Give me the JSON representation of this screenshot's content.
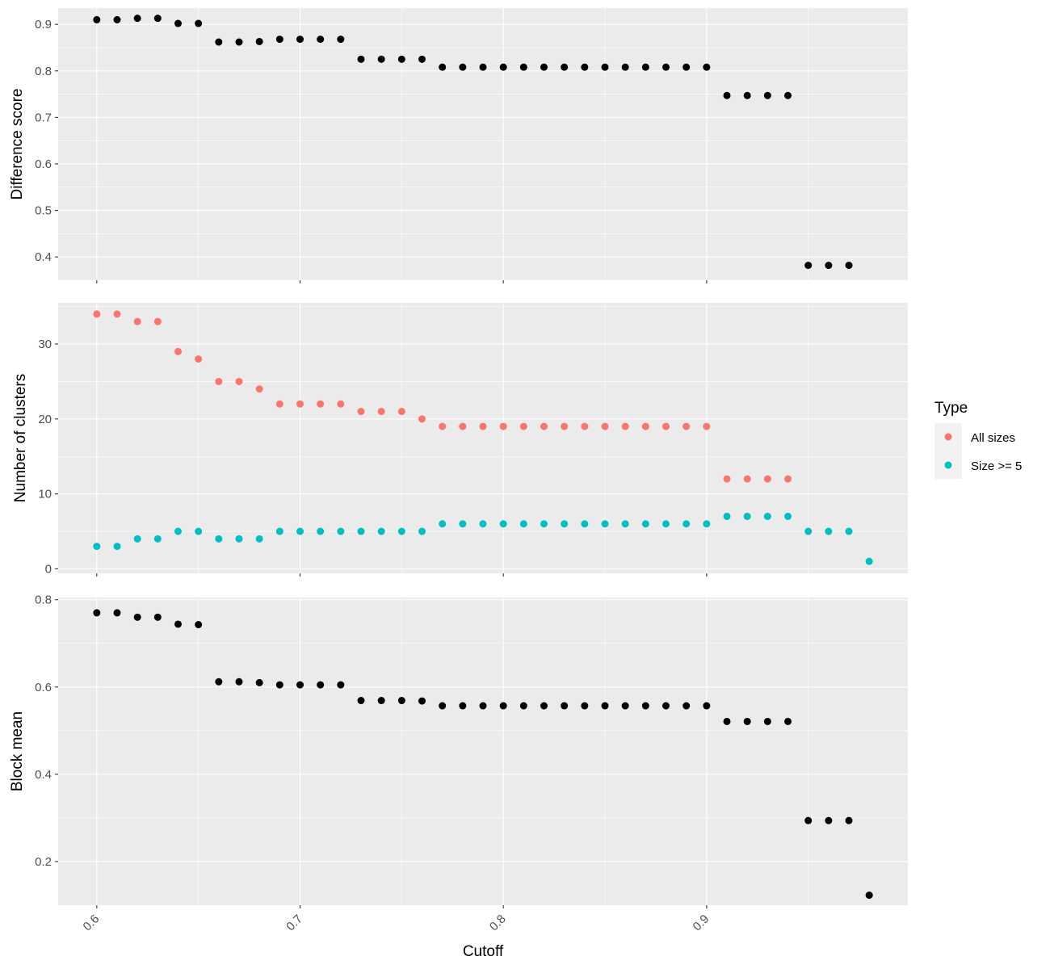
{
  "chart_data": [
    {
      "type": "scatter",
      "panel": "top",
      "ylabel": "Difference score",
      "ylim": [
        0.35,
        0.935
      ],
      "y_ticks": [
        "0.4",
        "0.5",
        "0.6",
        "0.7",
        "0.8",
        "0.9"
      ],
      "series": [
        {
          "color": "#000000",
          "x": [
            0.6,
            0.61,
            0.62,
            0.63,
            0.64,
            0.65,
            0.66,
            0.67,
            0.68,
            0.69,
            0.7,
            0.71,
            0.72,
            0.73,
            0.74,
            0.75,
            0.76,
            0.77,
            0.78,
            0.79,
            0.8,
            0.81,
            0.82,
            0.83,
            0.84,
            0.85,
            0.86,
            0.87,
            0.88,
            0.89,
            0.9,
            0.91,
            0.92,
            0.93,
            0.94,
            0.95,
            0.96,
            0.97
          ],
          "y": [
            0.91,
            0.91,
            0.913,
            0.913,
            0.902,
            0.902,
            0.862,
            0.862,
            0.863,
            0.868,
            0.868,
            0.868,
            0.868,
            0.825,
            0.825,
            0.825,
            0.825,
            0.808,
            0.808,
            0.808,
            0.808,
            0.808,
            0.808,
            0.808,
            0.808,
            0.808,
            0.808,
            0.808,
            0.808,
            0.808,
            0.808,
            0.747,
            0.747,
            0.747,
            0.747,
            0.382,
            0.382,
            0.382
          ]
        }
      ]
    },
    {
      "type": "scatter",
      "panel": "middle",
      "ylabel": "Number of clusters",
      "ylim": [
        -0.6,
        35.5
      ],
      "y_ticks": [
        "0",
        "10",
        "20",
        "30"
      ],
      "series": [
        {
          "name": "All sizes",
          "color": "#F8766D",
          "x": [
            0.6,
            0.61,
            0.62,
            0.63,
            0.64,
            0.65,
            0.66,
            0.67,
            0.68,
            0.69,
            0.7,
            0.71,
            0.72,
            0.73,
            0.74,
            0.75,
            0.76,
            0.77,
            0.78,
            0.79,
            0.8,
            0.81,
            0.82,
            0.83,
            0.84,
            0.85,
            0.86,
            0.87,
            0.88,
            0.89,
            0.9,
            0.91,
            0.92,
            0.93,
            0.94
          ],
          "y": [
            34,
            34,
            33,
            33,
            29,
            28,
            25,
            25,
            24,
            22,
            22,
            22,
            22,
            21,
            21,
            21,
            20,
            19,
            19,
            19,
            19,
            19,
            19,
            19,
            19,
            19,
            19,
            19,
            19,
            19,
            19,
            12,
            12,
            12,
            12
          ]
        },
        {
          "name": "Size >= 5",
          "color": "#00BFC4",
          "x": [
            0.6,
            0.61,
            0.62,
            0.63,
            0.64,
            0.65,
            0.66,
            0.67,
            0.68,
            0.69,
            0.7,
            0.71,
            0.72,
            0.73,
            0.74,
            0.75,
            0.76,
            0.77,
            0.78,
            0.79,
            0.8,
            0.81,
            0.82,
            0.83,
            0.84,
            0.85,
            0.86,
            0.87,
            0.88,
            0.89,
            0.9,
            0.91,
            0.92,
            0.93,
            0.94,
            0.95,
            0.96,
            0.97,
            0.98
          ],
          "y": [
            3,
            3,
            4,
            4,
            5,
            5,
            4,
            4,
            4,
            5,
            5,
            5,
            5,
            5,
            5,
            5,
            5,
            6,
            6,
            6,
            6,
            6,
            6,
            6,
            6,
            6,
            6,
            6,
            6,
            6,
            6,
            7,
            7,
            7,
            7,
            5,
            5,
            5,
            1
          ]
        }
      ]
    },
    {
      "type": "scatter",
      "panel": "bottom",
      "ylabel": "Block mean",
      "xlabel": "Cutoff",
      "ylim": [
        0.1,
        0.805
      ],
      "y_ticks": [
        "0.2",
        "0.4",
        "0.6",
        "0.8"
      ],
      "series": [
        {
          "color": "#000000",
          "x": [
            0.6,
            0.61,
            0.62,
            0.63,
            0.64,
            0.65,
            0.66,
            0.67,
            0.68,
            0.69,
            0.7,
            0.71,
            0.72,
            0.73,
            0.74,
            0.75,
            0.76,
            0.77,
            0.78,
            0.79,
            0.8,
            0.81,
            0.82,
            0.83,
            0.84,
            0.85,
            0.86,
            0.87,
            0.88,
            0.89,
            0.9,
            0.91,
            0.92,
            0.93,
            0.94,
            0.95,
            0.96,
            0.97,
            0.98
          ],
          "y": [
            0.77,
            0.77,
            0.76,
            0.76,
            0.744,
            0.743,
            0.612,
            0.612,
            0.61,
            0.605,
            0.605,
            0.605,
            0.605,
            0.569,
            0.569,
            0.569,
            0.568,
            0.557,
            0.557,
            0.557,
            0.557,
            0.557,
            0.557,
            0.557,
            0.557,
            0.557,
            0.557,
            0.557,
            0.557,
            0.557,
            0.557,
            0.521,
            0.521,
            0.521,
            0.521,
            0.294,
            0.294,
            0.294,
            0.123
          ]
        }
      ]
    }
  ],
  "x_axis": {
    "title": "Cutoff",
    "ticks": [
      "0.6",
      "0.7",
      "0.8",
      "0.9"
    ],
    "xlim": [
      0.581,
      0.999
    ]
  },
  "legend": {
    "title": "Type",
    "placement": "right",
    "items": [
      {
        "label": "All sizes",
        "color": "#F8766D"
      },
      {
        "label": "Size >= 5",
        "color": "#00BFC4"
      }
    ]
  }
}
